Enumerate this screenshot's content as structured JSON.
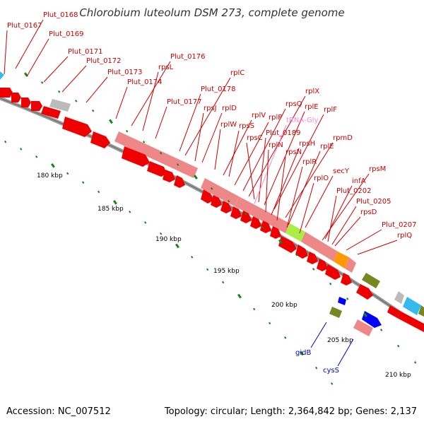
{
  "title": "Chlorobium luteolum DSM 273, complete genome",
  "footer": {
    "accession": "Accession: NC_007512",
    "summary": "Topology: circular; Length: 2,364,842 bp; Genes: 2,137"
  },
  "colors": {
    "label_red": "#cc0000",
    "label_pink": "#ff88cc",
    "label_blue": "#0000cc",
    "gene_red": "#ee0000",
    "gene_pink": "#ee8888",
    "gene_green": "#aaee44",
    "gene_orange": "#ff9900",
    "gene_olive": "#778822",
    "gene_cyan": "#33bbee",
    "gene_blue": "#0000ff",
    "gene_gray": "#bbbbbb",
    "tick_green": "#118811",
    "backbone": "#999999"
  },
  "kbp_ticks": [
    "180 kbp",
    "185 kbp",
    "190 kbp",
    "195 kbp",
    "200 kbp",
    "205 kbp",
    "210 kbp"
  ],
  "gene_labels_top": [
    "Plut_0167",
    "Plut_0168",
    "Plut_0169",
    "Plut_0171",
    "Plut_0172",
    "Plut_0173",
    "Plut_0174",
    "Plut_0176",
    "rpsL",
    "Plut_0177",
    "Plut_0178",
    "rplC",
    "rpsJ",
    "rplD",
    "rplW",
    "rplV",
    "rpsS",
    "rplP",
    "rpsQ",
    "rplX",
    "rpsC",
    "Plut_0189",
    "rplE",
    "tRNA-Gly",
    "rplF",
    "rplN",
    "rpsH",
    "rpmD",
    "rpsN",
    "rplE",
    "rplR",
    "secY",
    "rplO",
    "rpsM",
    "infA",
    "Plut_0202",
    "Plut_0205",
    "rpsD",
    "Plut_0207",
    "rplQ"
  ],
  "gene_labels_bottom": [
    "gidB",
    "cysS"
  ]
}
